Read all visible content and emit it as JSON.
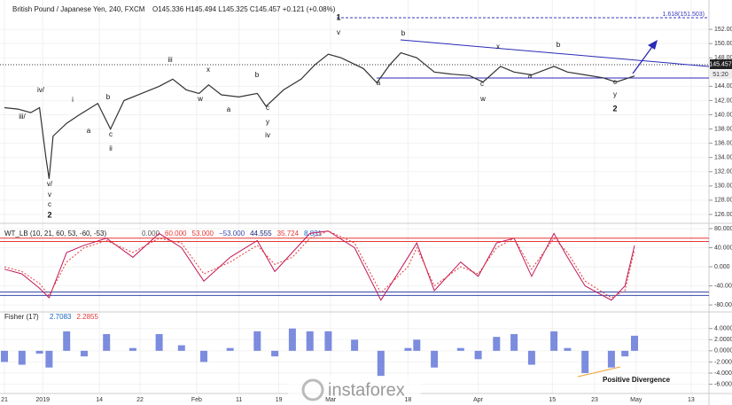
{
  "chart_data": [
    {
      "type": "line",
      "title": "British Pound / Japanese Yen, 240, FXCM",
      "ohlc": "O145.336 H145.494 L145.325 C145.457 +0.121 (+0.08%)",
      "price_label": "145.457",
      "countdown": "51:20",
      "fib_label": "1.618(151.503)",
      "annotations": [
        "1",
        "v",
        "b",
        "x",
        "b",
        "iii",
        "x",
        "iv/",
        "i",
        "b",
        "b",
        "iii/",
        "a",
        "c",
        "ii",
        "w",
        "a",
        "c",
        "y",
        "iv",
        "a",
        "c",
        "w",
        "a",
        "c",
        "y",
        "2",
        "v/",
        "v",
        "c",
        "2"
      ],
      "x": [
        0,
        1.7,
        3.3,
        4.4,
        5.2,
        5.6,
        6.1,
        7.8,
        9.4,
        11.7,
        13.3,
        15,
        17.2,
        19.4,
        21.1,
        22.8,
        24.4,
        25.6,
        27.2,
        29.4,
        31.7,
        32.8,
        35,
        37.2,
        38.9,
        40.6,
        42.2,
        45,
        46.7,
        48.3,
        49.7,
        51.7,
        53.9,
        56.1,
        58.3,
        60,
        62.2,
        63.9,
        66.1,
        68.9,
        70.6,
        72.8,
        75,
        76.7,
        79
      ],
      "series": [
        {
          "name": "GBPJPY",
          "color": "#333333",
          "values": [
            141,
            140.8,
            140.3,
            141,
            134,
            131,
            137,
            138.8,
            140,
            141.6,
            138,
            142,
            143,
            144,
            145,
            143.5,
            143,
            144.2,
            142.8,
            142.5,
            143,
            141.2,
            143.5,
            145,
            147,
            148.5,
            148,
            146.5,
            144.5,
            147,
            148.7,
            148,
            146,
            145.7,
            145.5,
            144.6,
            146.8,
            146,
            145.6,
            146.8,
            146,
            145.6,
            145.2,
            144.6,
            145.457
          ]
        }
      ],
      "xlim": [
        -0.5556,
        88.333
      ],
      "ylim": [
        125,
        155.5
      ],
      "yticks": [
        {
          "value": 126,
          "label": "126.000"
        },
        {
          "value": 128,
          "label": "128.000"
        },
        {
          "value": 130,
          "label": "130.000"
        },
        {
          "value": 132,
          "label": "132.000"
        },
        {
          "value": 134,
          "label": "134.000"
        },
        {
          "value": 136,
          "label": "136.000"
        },
        {
          "value": 138,
          "label": "138.000"
        },
        {
          "value": 140,
          "label": "140.000"
        },
        {
          "value": 142,
          "label": "142.000"
        },
        {
          "value": 144,
          "label": "144.000"
        },
        {
          "value": 148,
          "label": "148.000"
        },
        {
          "value": 150,
          "label": "150.000"
        },
        {
          "value": 152,
          "label": "152.000"
        }
      ],
      "xticks": [
        {
          "value": 0,
          "label": "21"
        },
        {
          "value": 4.8,
          "label": "2019"
        },
        {
          "value": 11.9,
          "label": "14"
        },
        {
          "value": 17,
          "label": "22"
        },
        {
          "value": 24.1,
          "label": "Feb"
        },
        {
          "value": 29.4,
          "label": "11"
        },
        {
          "value": 34.4,
          "label": "19"
        },
        {
          "value": 40.9,
          "label": "Mar"
        },
        {
          "value": 50.6,
          "label": "18"
        },
        {
          "value": 59.4,
          "label": "Apr"
        },
        {
          "value": 68.7,
          "label": "15"
        },
        {
          "value": 74,
          "label": "23"
        },
        {
          "value": 79.2,
          "label": "May"
        },
        {
          "value": 86.1,
          "label": "13"
        }
      ]
    },
    {
      "type": "line",
      "title": "WT_LB (10, 21, 60, 53, -60, -53)",
      "legend_values": [
        "0.000",
        "60.000",
        "53.000",
        "−53.000",
        "44.555",
        "35.724",
        "8.831"
      ],
      "levels": [
        60,
        53,
        -53,
        -60
      ],
      "x": [
        0,
        2.2,
        4.4,
        5.6,
        7.8,
        10,
        12.8,
        16.1,
        19.4,
        22.2,
        25,
        28.3,
        31.7,
        33.9,
        36.1,
        38.3,
        40.6,
        43.9,
        47.2,
        50.6,
        51.7,
        53.9,
        57.2,
        59.4,
        61.7,
        63.9,
        66.1,
        68.9,
        70.6,
        72.8,
        76.1,
        77.8,
        79
      ],
      "series": [
        {
          "name": "WT1",
          "color": "#c2185b",
          "values": [
            -5,
            -15,
            -45,
            -65,
            30,
            45,
            60,
            20,
            70,
            40,
            -30,
            20,
            55,
            -10,
            30,
            70,
            75,
            40,
            -70,
            20,
            50,
            -50,
            10,
            -20,
            50,
            60,
            -20,
            70,
            20,
            -40,
            -70,
            -40,
            44.555
          ]
        },
        {
          "name": "WT2",
          "color": "#e53935",
          "values": [
            0,
            -10,
            -35,
            -60,
            10,
            40,
            55,
            30,
            60,
            50,
            -15,
            10,
            45,
            5,
            20,
            60,
            75,
            50,
            -55,
            0,
            40,
            -40,
            0,
            -15,
            40,
            60,
            -5,
            60,
            30,
            -30,
            -65,
            -50,
            35.724
          ]
        }
      ],
      "xlim": [
        -0.5556,
        88.333
      ],
      "ylim": [
        -91,
        85.6
      ],
      "yticks": [
        {
          "value": -80,
          "label": "-80.000"
        },
        {
          "value": -40,
          "label": "-40.000"
        },
        {
          "value": 0,
          "label": "0.000"
        },
        {
          "value": 40,
          "label": "40.000"
        },
        {
          "value": 80,
          "label": "80.000"
        }
      ]
    },
    {
      "type": "bar",
      "title": "Fisher (17)",
      "legend_values": [
        "2.7083",
        "2.2855"
      ],
      "annotation": "Positive Divergence",
      "x": [
        0,
        2.2,
        4.4,
        5.6,
        7.8,
        10,
        12.8,
        16.1,
        19.4,
        22.2,
        25,
        28.3,
        31.7,
        33.9,
        36.1,
        38.3,
        40.6,
        43.9,
        47.2,
        50.6,
        51.7,
        53.9,
        57.2,
        59.4,
        61.7,
        63.9,
        66.1,
        68.9,
        70.6,
        72.8,
        76.1,
        77.8,
        79
      ],
      "series": [
        {
          "name": "Fisher",
          "color": "#5b6fd6",
          "values": [
            -2,
            -2.5,
            -0.5,
            -3,
            3.5,
            -1,
            3,
            0.5,
            3,
            1,
            -2,
            0.5,
            3.5,
            -1,
            4,
            3.5,
            3.5,
            2,
            -4.5,
            0.5,
            2,
            -3,
            0.5,
            -1.5,
            2.5,
            3,
            -2.5,
            3.5,
            0.5,
            -4,
            -3,
            -1,
            2.7083
          ]
        }
      ],
      "xlim": [
        -0.5556,
        88.333
      ],
      "ylim": [
        -7.5,
        6.5
      ],
      "yticks": [
        {
          "value": -6,
          "label": "-6.0000"
        },
        {
          "value": -4,
          "label": "-4.0000"
        },
        {
          "value": -2,
          "label": "-2.0000"
        },
        {
          "value": 0,
          "label": "0.0000"
        },
        {
          "value": 2,
          "label": "2.0000"
        },
        {
          "value": 4,
          "label": "4.0000"
        }
      ]
    }
  ],
  "watermark": "instaforex"
}
